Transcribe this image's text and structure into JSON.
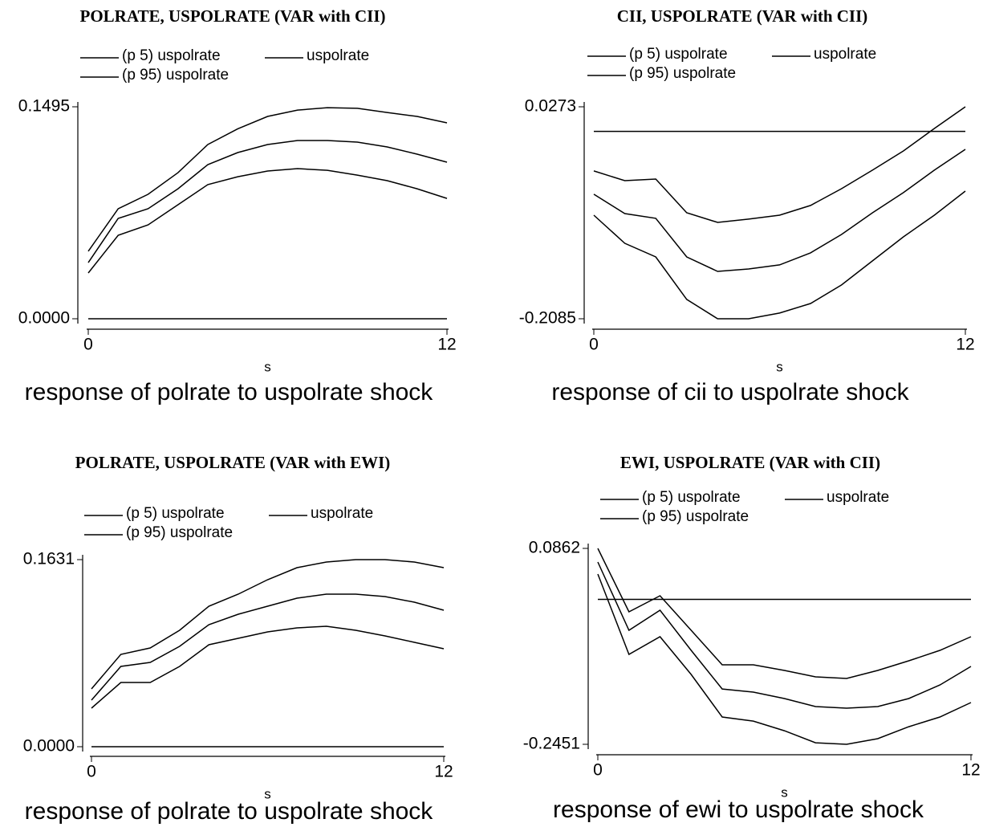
{
  "chart_data": [
    {
      "type": "line",
      "title": "POLRATE, USPOLRATE (VAR with CII)",
      "x_label": "s",
      "caption": "response of polrate to uspolrate shock",
      "x": [
        0,
        1,
        2,
        3,
        4,
        5,
        6,
        7,
        8,
        9,
        10,
        11,
        12
      ],
      "xlim": [
        0,
        12
      ],
      "xticks": [
        0,
        12
      ],
      "ylim": [
        0,
        0.1495
      ],
      "yticks": [
        {
          "value": 0,
          "label": "0.0000"
        },
        0.1495
      ],
      "hline": 0,
      "color": "#000000",
      "series": [
        {
          "name": "(p 5) uspolrate",
          "color": "#000000",
          "values": [
            0.0323,
            0.0589,
            0.0662,
            0.0804,
            0.0946,
            0.1002,
            0.1042,
            0.1059,
            0.1047,
            0.1013,
            0.0974,
            0.0917,
            0.0849
          ]
        },
        {
          "name": "uspolrate",
          "color": "#000000",
          "values": [
            0.0396,
            0.0708,
            0.0776,
            0.0917,
            0.1087,
            0.1172,
            0.1229,
            0.1257,
            0.1257,
            0.1246,
            0.1212,
            0.1161,
            0.1104
          ]
        },
        {
          "name": "(p 95) uspolrate",
          "color": "#000000",
          "values": [
            0.0476,
            0.0776,
            0.0878,
            0.103,
            0.1229,
            0.134,
            0.1427,
            0.1472,
            0.1489,
            0.1484,
            0.1455,
            0.1427,
            0.1382
          ]
        }
      ]
    },
    {
      "type": "line",
      "title": "CII, USPOLRATE (VAR with CII)",
      "x_label": "s",
      "caption": "response of cii to uspolrate shock",
      "x": [
        0,
        1,
        2,
        3,
        4,
        5,
        6,
        7,
        8,
        9,
        10,
        11,
        12
      ],
      "xlim": [
        0,
        12
      ],
      "xticks": [
        0,
        12
      ],
      "ylim": [
        -0.2085,
        0.0273
      ],
      "yticks": [
        -0.2085,
        0.0273
      ],
      "hline": 0,
      "color": "#000000",
      "series": [
        {
          "name": "(p 5) uspolrate",
          "color": "#000000",
          "values": [
            -0.0933,
            -0.1245,
            -0.1397,
            -0.187,
            -0.2085,
            -0.2085,
            -0.2022,
            -0.1915,
            -0.1709,
            -0.1441,
            -0.1174,
            -0.0933,
            -0.0665
          ]
        },
        {
          "name": "uspolrate",
          "color": "#000000",
          "values": [
            -0.07,
            -0.0915,
            -0.0968,
            -0.1397,
            -0.1558,
            -0.1531,
            -0.1486,
            -0.1352,
            -0.1147,
            -0.0906,
            -0.0682,
            -0.0432,
            -0.02
          ]
        },
        {
          "name": "(p 95) uspolrate",
          "color": "#000000",
          "values": [
            -0.0441,
            -0.0549,
            -0.0531,
            -0.0906,
            -0.1013,
            -0.0977,
            -0.0933,
            -0.0825,
            -0.0638,
            -0.0432,
            -0.0218,
            0.0032,
            0.0273
          ]
        }
      ]
    },
    {
      "type": "line",
      "title": "POLRATE, USPOLRATE (VAR with EWI)",
      "x_label": "s",
      "caption": "response of polrate to uspolrate shock",
      "x": [
        0,
        1,
        2,
        3,
        4,
        5,
        6,
        7,
        8,
        9,
        10,
        11,
        12
      ],
      "xlim": [
        0,
        12
      ],
      "xticks": [
        0,
        12
      ],
      "ylim": [
        0,
        0.1631
      ],
      "yticks": [
        {
          "value": 0,
          "label": "0.0000"
        },
        0.1631
      ],
      "hline": 0,
      "color": "#000000",
      "series": [
        {
          "name": "(p 5) uspolrate",
          "color": "#000000",
          "values": [
            0.0336,
            0.056,
            0.056,
            0.07,
            0.0889,
            0.0945,
            0.1001,
            0.1036,
            0.105,
            0.1015,
            0.0966,
            0.091,
            0.0854
          ]
        },
        {
          "name": "uspolrate",
          "color": "#000000",
          "values": [
            0.0406,
            0.07,
            0.0735,
            0.0875,
            0.1064,
            0.1155,
            0.1225,
            0.1295,
            0.133,
            0.133,
            0.1309,
            0.126,
            0.119
          ]
        },
        {
          "name": "(p 95) uspolrate",
          "color": "#000000",
          "values": [
            0.0504,
            0.0805,
            0.0861,
            0.1015,
            0.1225,
            0.133,
            0.1456,
            0.1561,
            0.161,
            0.1631,
            0.1631,
            0.161,
            0.1561
          ]
        }
      ]
    },
    {
      "type": "line",
      "title": "EWI, USPOLRATE (VAR with CII)",
      "x_label": "s",
      "caption": "response of ewi to uspolrate shock",
      "x": [
        0,
        1,
        2,
        3,
        4,
        5,
        6,
        7,
        8,
        9,
        10,
        11,
        12
      ],
      "xlim": [
        0,
        12
      ],
      "xticks": [
        0,
        12
      ],
      "ylim": [
        -0.2451,
        0.0862
      ],
      "yticks": [
        -0.2451,
        0.0862
      ],
      "hline": 0,
      "color": "#000000",
      "series": [
        {
          "name": "(p 5) uspolrate",
          "color": "#000000",
          "values": [
            0.0427,
            -0.093,
            -0.0632,
            -0.127,
            -0.199,
            -0.2058,
            -0.2221,
            -0.2425,
            -0.2451,
            -0.2356,
            -0.2153,
            -0.199,
            -0.1745
          ]
        },
        {
          "name": "uspolrate",
          "color": "#000000",
          "values": [
            0.0631,
            -0.0523,
            -0.0184,
            -0.0863,
            -0.1515,
            -0.1569,
            -0.1677,
            -0.1813,
            -0.184,
            -0.1813,
            -0.1677,
            -0.1447,
            -0.1134
          ]
        },
        {
          "name": "(p 95) uspolrate",
          "color": "#000000",
          "values": [
            0.0862,
            -0.0211,
            0.0061,
            -0.0523,
            -0.1107,
            -0.1107,
            -0.1202,
            -0.1311,
            -0.1338,
            -0.1202,
            -0.1039,
            -0.0863,
            -0.0632
          ]
        }
      ]
    }
  ]
}
